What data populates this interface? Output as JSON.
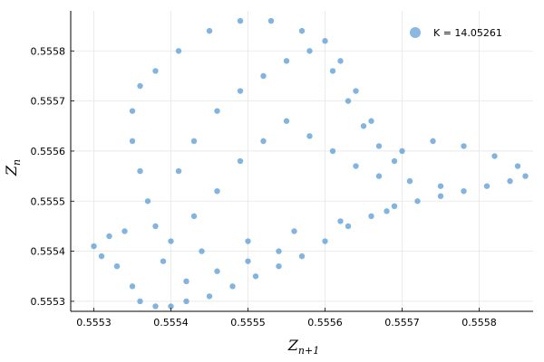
{
  "chart_data": {
    "type": "scatter",
    "title": "",
    "xlabel": "Z",
    "xlabel_sub": "n+1",
    "ylabel": "Z",
    "ylabel_sub": "n",
    "xlim": [
      0.55527,
      0.55587
    ],
    "ylim": [
      0.55528,
      0.55588
    ],
    "x_ticks": [
      "0.5553",
      "0.5554",
      "0.5555",
      "0.5556",
      "0.5557",
      "0.5558"
    ],
    "x_tick_values": [
      0.5553,
      0.5554,
      0.5555,
      0.5556,
      0.5557,
      0.5558
    ],
    "y_ticks": [
      "0.5553",
      "0.5554",
      "0.5555",
      "0.5556",
      "0.5557",
      "0.5558"
    ],
    "y_tick_values": [
      0.5553,
      0.5554,
      0.5555,
      0.5556,
      0.5557,
      0.5558
    ],
    "grid": true,
    "legend_placement": "top-right",
    "series": [
      {
        "name": "K = 14.05261",
        "color": "#5a9bd5",
        "points": [
          [
            0.5553,
            0.55541
          ],
          [
            0.55531,
            0.55539
          ],
          [
            0.55532,
            0.55543
          ],
          [
            0.55533,
            0.55537
          ],
          [
            0.55534,
            0.55544
          ],
          [
            0.55535,
            0.55533
          ],
          [
            0.55536,
            0.5553
          ],
          [
            0.55538,
            0.55529
          ],
          [
            0.5554,
            0.55529
          ],
          [
            0.55542,
            0.5553
          ],
          [
            0.55545,
            0.55531
          ],
          [
            0.55548,
            0.55533
          ],
          [
            0.55551,
            0.55535
          ],
          [
            0.55554,
            0.55537
          ],
          [
            0.55557,
            0.55539
          ],
          [
            0.5556,
            0.55542
          ],
          [
            0.55563,
            0.55545
          ],
          [
            0.55566,
            0.55547
          ],
          [
            0.55569,
            0.55549
          ],
          [
            0.55572,
            0.5555
          ],
          [
            0.55575,
            0.55551
          ],
          [
            0.55578,
            0.55552
          ],
          [
            0.55581,
            0.55553
          ],
          [
            0.55584,
            0.55554
          ],
          [
            0.55586,
            0.55555
          ],
          [
            0.55585,
            0.55557
          ],
          [
            0.55582,
            0.55559
          ],
          [
            0.55578,
            0.55561
          ],
          [
            0.55574,
            0.55562
          ],
          [
            0.5557,
            0.5556
          ],
          [
            0.55566,
            0.55566
          ],
          [
            0.55564,
            0.55572
          ],
          [
            0.55562,
            0.55578
          ],
          [
            0.5556,
            0.55582
          ],
          [
            0.55557,
            0.55584
          ],
          [
            0.55553,
            0.55586
          ],
          [
            0.55549,
            0.55586
          ],
          [
            0.55545,
            0.55584
          ],
          [
            0.55541,
            0.5558
          ],
          [
            0.55538,
            0.55576
          ],
          [
            0.55536,
            0.55573
          ],
          [
            0.55535,
            0.55568
          ],
          [
            0.55535,
            0.55562
          ],
          [
            0.55536,
            0.55556
          ],
          [
            0.55537,
            0.5555
          ],
          [
            0.55538,
            0.55545
          ],
          [
            0.5554,
            0.55542
          ],
          [
            0.55543,
            0.55547
          ],
          [
            0.55546,
            0.55552
          ],
          [
            0.55549,
            0.55558
          ],
          [
            0.55552,
            0.55562
          ],
          [
            0.55555,
            0.55566
          ],
          [
            0.55558,
            0.55563
          ],
          [
            0.55561,
            0.5556
          ],
          [
            0.55564,
            0.55557
          ],
          [
            0.55567,
            0.55555
          ],
          [
            0.55571,
            0.55554
          ],
          [
            0.55575,
            0.55553
          ],
          [
            0.55568,
            0.55548
          ],
          [
            0.55562,
            0.55546
          ],
          [
            0.55556,
            0.55544
          ],
          [
            0.5555,
            0.55542
          ],
          [
            0.55544,
            0.5554
          ],
          [
            0.55539,
            0.55538
          ],
          [
            0.55542,
            0.55534
          ],
          [
            0.55546,
            0.55536
          ],
          [
            0.5555,
            0.55538
          ],
          [
            0.55554,
            0.5554
          ],
          [
            0.55541,
            0.55556
          ],
          [
            0.55543,
            0.55562
          ],
          [
            0.55546,
            0.55568
          ],
          [
            0.55549,
            0.55572
          ],
          [
            0.55552,
            0.55575
          ],
          [
            0.55555,
            0.55578
          ],
          [
            0.55558,
            0.5558
          ],
          [
            0.55561,
            0.55576
          ],
          [
            0.55563,
            0.5557
          ],
          [
            0.55565,
            0.55565
          ],
          [
            0.55567,
            0.55561
          ],
          [
            0.55569,
            0.55558
          ]
        ]
      }
    ]
  }
}
